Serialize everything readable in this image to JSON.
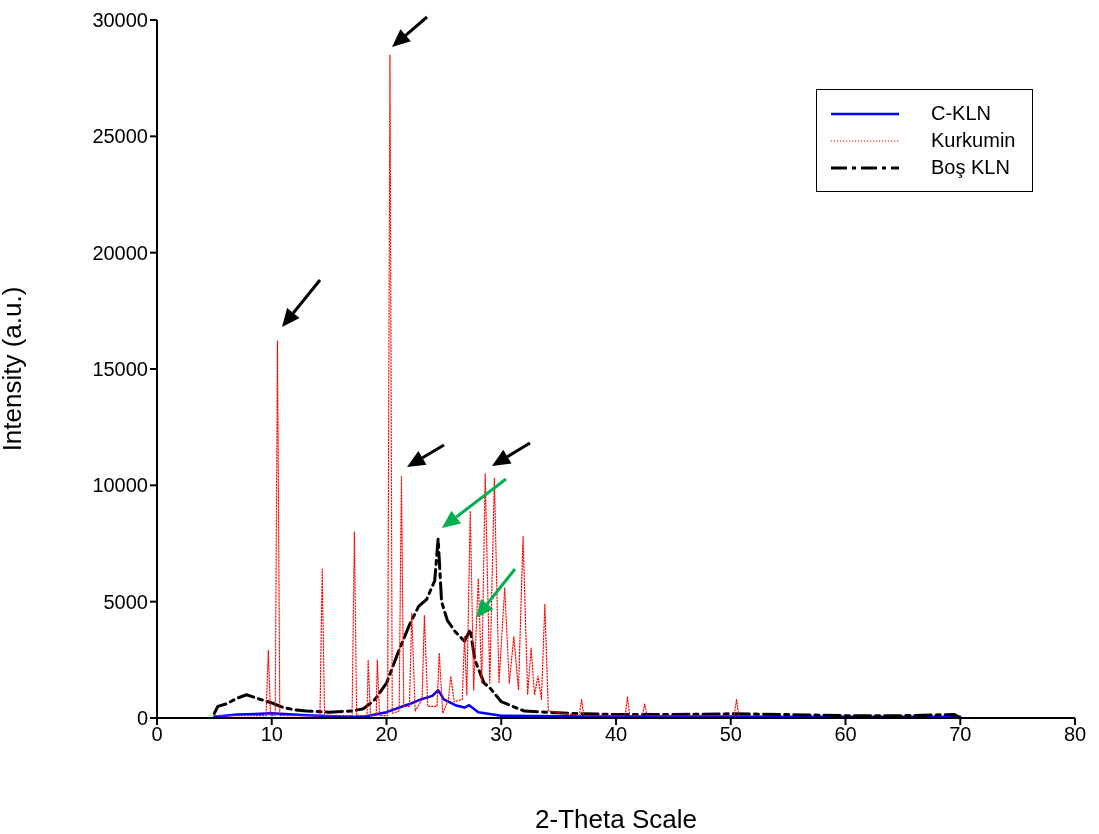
{
  "chart_data": {
    "type": "line",
    "xlabel": "2-Theta Scale",
    "ylabel": "Intensity (a.u.)",
    "xlim": [
      0,
      80
    ],
    "xticks": [
      0,
      10,
      20,
      30,
      40,
      50,
      60,
      70,
      80
    ],
    "ylim": [
      0,
      30000
    ],
    "yticks": [
      0,
      5000,
      10000,
      15000,
      20000,
      25000,
      30000
    ],
    "grid": false,
    "legend": "top right",
    "marker": "none",
    "series": [
      {
        "name": "C-KLN",
        "color": "#0000ff",
        "line_style": "solid",
        "x": [
          5,
          7,
          10,
          13,
          16,
          18,
          20,
          22,
          23,
          24,
          24.5,
          25,
          26,
          26.8,
          27.2,
          28,
          30,
          35,
          40,
          50,
          60,
          70
        ],
        "values": [
          50,
          150,
          200,
          120,
          60,
          50,
          250,
          600,
          800,
          950,
          1200,
          800,
          550,
          450,
          550,
          250,
          100,
          70,
          60,
          60,
          50,
          50
        ]
      },
      {
        "name": "Kurkumin",
        "color": "#ff0000",
        "line_style": "dotted",
        "x": [
          5,
          9.5,
          9.7,
          9.9,
          10.3,
          10.5,
          10.7,
          14.2,
          14.4,
          14.6,
          17.0,
          17.2,
          17.4,
          18.3,
          18.4,
          18.6,
          19.1,
          19.2,
          19.4,
          20.1,
          20.3,
          20.5,
          21.1,
          21.3,
          21.5,
          22.0,
          22.2,
          22.5,
          23.1,
          23.3,
          23.6,
          24.4,
          24.6,
          24.9,
          25.4,
          25.6,
          25.9,
          26.6,
          26.8,
          27.0,
          27.3,
          27.6,
          28.0,
          28.3,
          28.6,
          29.0,
          29.4,
          29.8,
          30.3,
          30.7,
          31.1,
          31.5,
          31.9,
          32.3,
          32.6,
          32.9,
          33.2,
          33.5,
          33.8,
          34.1,
          36.8,
          37.0,
          37.2,
          40.8,
          41.0,
          41.2,
          42.3,
          42.5,
          42.7,
          50.3,
          50.5,
          50.7
        ],
        "values": [
          100,
          100,
          2900,
          100,
          100,
          16200,
          100,
          100,
          6400,
          100,
          100,
          8000,
          100,
          100,
          2500,
          100,
          100,
          2500,
          100,
          100,
          28500,
          200,
          300,
          10400,
          500,
          500,
          4500,
          300,
          800,
          4400,
          500,
          500,
          2800,
          200,
          800,
          1800,
          700,
          800,
          3500,
          1000,
          8900,
          1200,
          6000,
          1500,
          10500,
          1500,
          10300,
          1500,
          5600,
          1500,
          3500,
          1200,
          7800,
          1000,
          3000,
          1000,
          1800,
          800,
          4900,
          300,
          100,
          800,
          100,
          100,
          900,
          100,
          100,
          600,
          100,
          100,
          800,
          100
        ]
      },
      {
        "name": "Boş KLN",
        "color": "#000000",
        "line_style": "dashed",
        "x": [
          5,
          5.3,
          6,
          7,
          7.8,
          9,
          10,
          11,
          12,
          13,
          15,
          17,
          18,
          19,
          20,
          21,
          22,
          22.8,
          23.5,
          24.2,
          24.5,
          24.8,
          25.3,
          26,
          26.8,
          27.3,
          27.7,
          28.5,
          29,
          30,
          31,
          32,
          34,
          36,
          40,
          45,
          50,
          55,
          60,
          65,
          69.5,
          70
        ],
        "values": [
          200,
          500,
          600,
          850,
          1000,
          800,
          650,
          450,
          350,
          300,
          250,
          300,
          400,
          800,
          1500,
          2800,
          4000,
          4800,
          5100,
          5900,
          7700,
          5000,
          4200,
          3700,
          3300,
          3800,
          2500,
          1500,
          1300,
          700,
          500,
          300,
          250,
          200,
          150,
          150,
          180,
          150,
          100,
          100,
          150,
          0
        ]
      }
    ]
  }
}
